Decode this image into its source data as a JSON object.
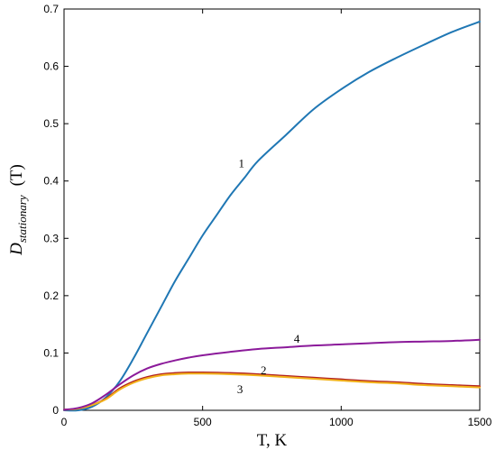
{
  "chart_data": {
    "type": "line",
    "xlabel": "T, K",
    "ylabel": {
      "main": "D",
      "subscript": "stationary",
      "suffix": "(T)"
    },
    "xlim": [
      0,
      1500
    ],
    "ylim": [
      0,
      0.7
    ],
    "x_ticks": [
      0,
      500,
      1000,
      1500
    ],
    "y_ticks": [
      0,
      0.1,
      0.2,
      0.3,
      0.4,
      0.5,
      0.6,
      0.7
    ],
    "x_tick_labels": [
      "0",
      "500",
      "1000",
      "1500"
    ],
    "y_tick_labels": [
      "0",
      "0.1",
      "0.2",
      "0.3",
      "0.4",
      "0.5",
      "0.6",
      "0.7"
    ],
    "grid": false,
    "series": [
      {
        "label": "1",
        "color": "#1f77b4",
        "x": [
          0,
          50,
          100,
          150,
          200,
          250,
          300,
          350,
          400,
          450,
          500,
          550,
          600,
          650,
          700,
          800,
          900,
          1000,
          1100,
          1200,
          1300,
          1400,
          1500
        ],
        "y": [
          0,
          0.0,
          0.006,
          0.022,
          0.05,
          0.09,
          0.135,
          0.18,
          0.225,
          0.265,
          0.305,
          0.34,
          0.375,
          0.405,
          0.435,
          0.48,
          0.525,
          0.56,
          0.59,
          0.615,
          0.638,
          0.66,
          0.678
        ],
        "label_at": [
          640,
          0.43
        ]
      },
      {
        "label": "2",
        "color": "#b22222",
        "x": [
          0,
          50,
          100,
          150,
          200,
          250,
          300,
          350,
          400,
          450,
          500,
          600,
          700,
          800,
          900,
          1000,
          1100,
          1200,
          1300,
          1400,
          1500
        ],
        "y": [
          0.001,
          0.003,
          0.009,
          0.02,
          0.038,
          0.05,
          0.058,
          0.063,
          0.065,
          0.066,
          0.066,
          0.065,
          0.063,
          0.06,
          0.057,
          0.054,
          0.051,
          0.049,
          0.046,
          0.044,
          0.042
        ],
        "label_at": [
          720,
          0.069
        ]
      },
      {
        "label": "3",
        "color": "#f2b21a",
        "x": [
          0,
          50,
          100,
          150,
          200,
          250,
          300,
          350,
          400,
          450,
          500,
          600,
          700,
          800,
          900,
          1000,
          1100,
          1200,
          1300,
          1400,
          1500
        ],
        "y": [
          0.001,
          0.003,
          0.009,
          0.019,
          0.036,
          0.048,
          0.056,
          0.061,
          0.063,
          0.064,
          0.064,
          0.063,
          0.061,
          0.058,
          0.055,
          0.052,
          0.049,
          0.047,
          0.044,
          0.042,
          0.04
        ],
        "label_at": [
          635,
          0.036
        ]
      },
      {
        "label": "4",
        "color": "#8b1a9a",
        "x": [
          0,
          50,
          100,
          150,
          200,
          250,
          300,
          350,
          400,
          450,
          500,
          600,
          700,
          800,
          900,
          1000,
          1100,
          1200,
          1300,
          1400,
          1500
        ],
        "y": [
          0.001,
          0.004,
          0.012,
          0.027,
          0.045,
          0.061,
          0.073,
          0.081,
          0.087,
          0.092,
          0.096,
          0.102,
          0.107,
          0.11,
          0.113,
          0.115,
          0.117,
          0.119,
          0.12,
          0.121,
          0.123
        ],
        "label_at": [
          840,
          0.124
        ]
      }
    ]
  }
}
